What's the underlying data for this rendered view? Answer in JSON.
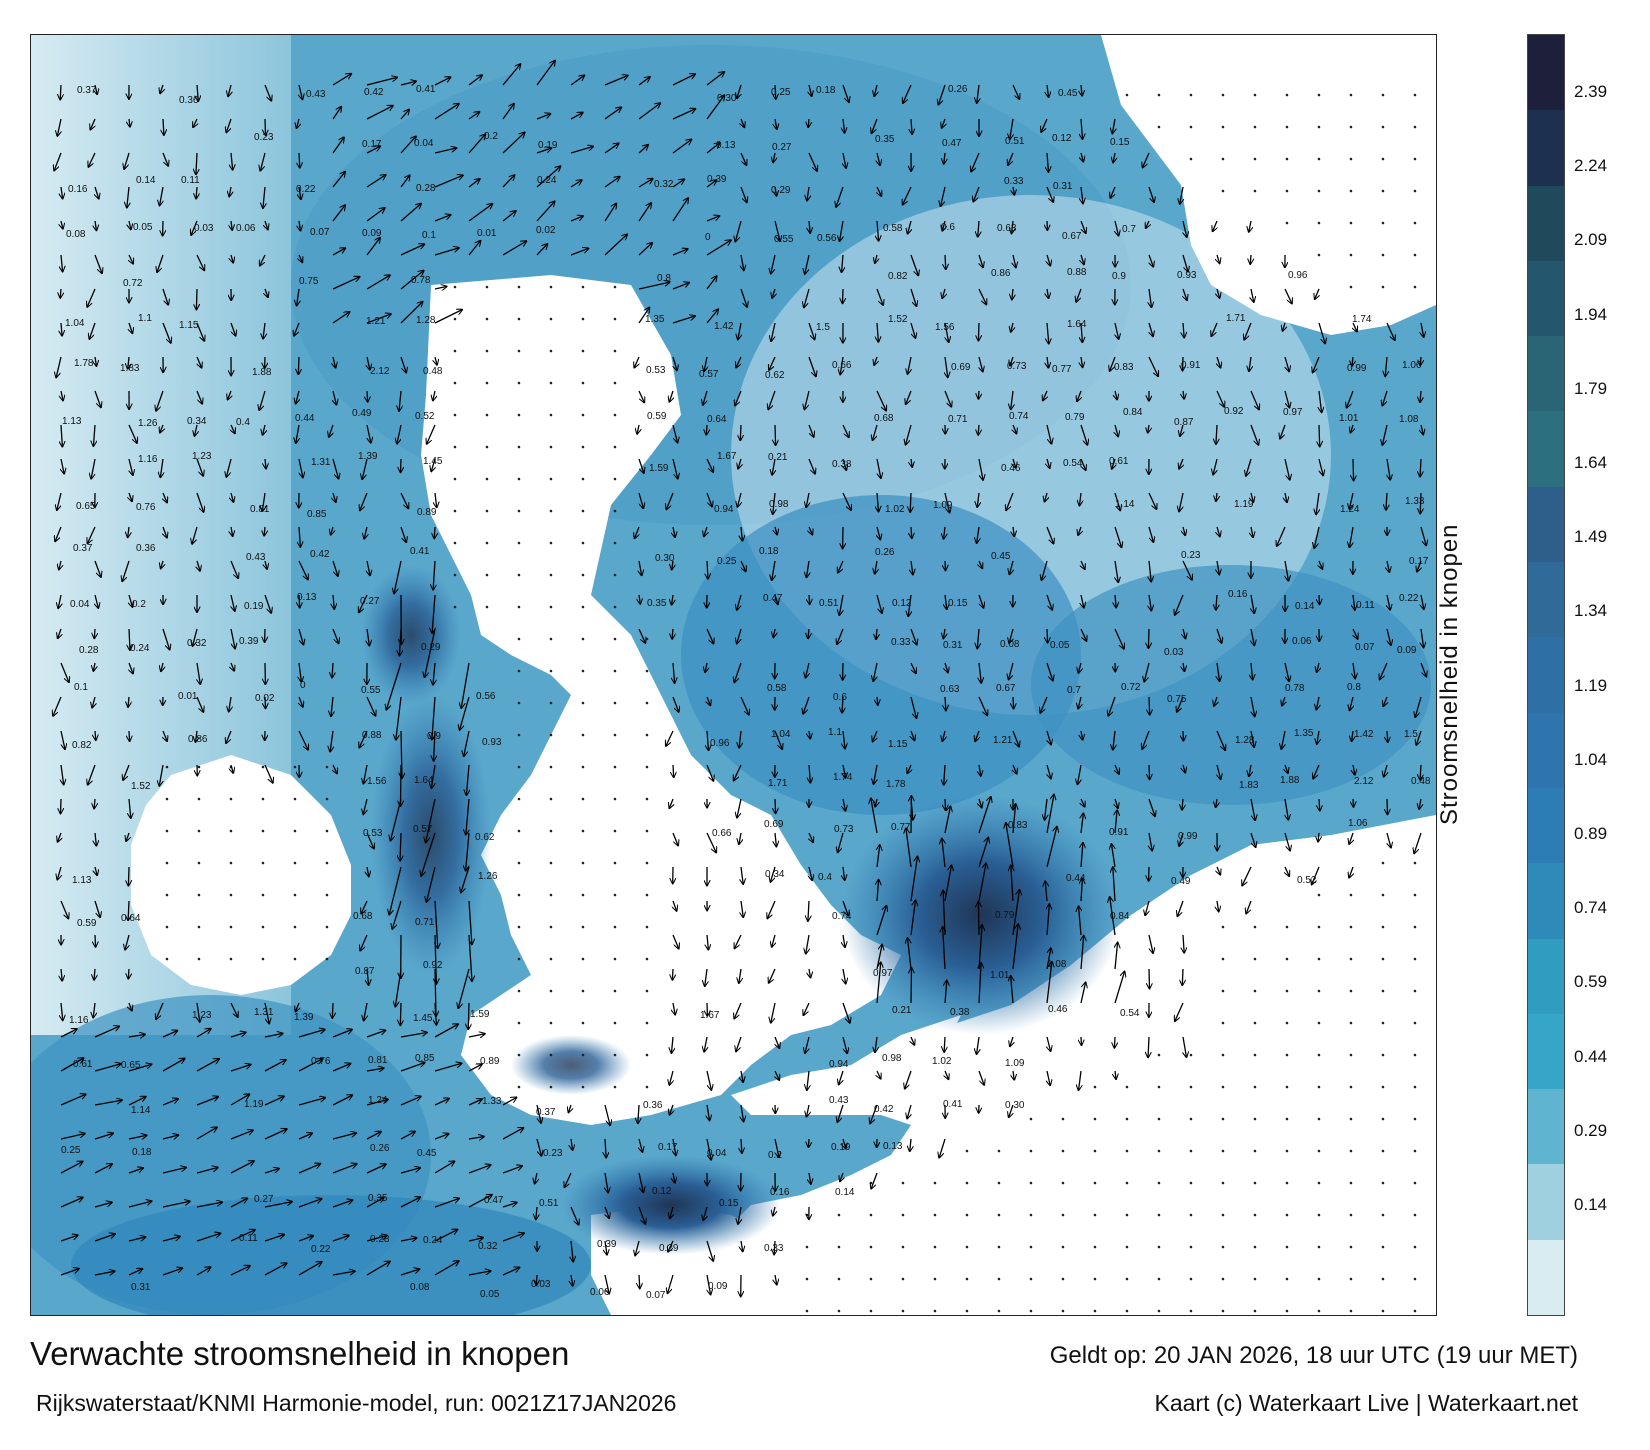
{
  "map": {
    "legend_title": "Stroomsnelheid in knopen",
    "colorbar_ticks": [
      "2.39",
      "2.24",
      "2.09",
      "1.94",
      "1.79",
      "1.64",
      "1.49",
      "1.34",
      "1.19",
      "1.04",
      "0.89",
      "0.74",
      "0.59",
      "0.44",
      "0.29",
      "0.14"
    ],
    "colorbar_colors": [
      "#1e1f3a",
      "#1d3050",
      "#1e4a5c",
      "#24566e",
      "#2a6575",
      "#2c6f7e",
      "#2d5f8a",
      "#2f6a98",
      "#2e6fa6",
      "#2e74ae",
      "#2c7cb6",
      "#2e8ab8",
      "#2f9cc0",
      "#36a6c8",
      "#5fb4d0",
      "#9ed0e0",
      "#d8ecf2"
    ],
    "land_color": "#ffffff",
    "vector_labels": [
      {
        "v": "0.37"
      },
      {
        "v": "0.36"
      },
      {
        "v": "0.43"
      },
      {
        "v": "0.42"
      },
      {
        "v": "0.41"
      },
      {
        "v": "0.30"
      },
      {
        "v": "0.25"
      },
      {
        "v": "0.18"
      },
      {
        "v": "0.26"
      },
      {
        "v": "0.45"
      },
      {
        "v": "0.23"
      },
      {
        "v": "0.17"
      },
      {
        "v": "0.04"
      },
      {
        "v": "0.2"
      },
      {
        "v": "0.19"
      },
      {
        "v": "0.13"
      },
      {
        "v": "0.27"
      },
      {
        "v": "0.35"
      },
      {
        "v": "0.47"
      },
      {
        "v": "0.51"
      },
      {
        "v": "0.12"
      },
      {
        "v": "0.15"
      },
      {
        "v": "0.16"
      },
      {
        "v": "0.14"
      },
      {
        "v": "0.11"
      },
      {
        "v": "0.22"
      },
      {
        "v": "0.28"
      },
      {
        "v": "0.24"
      },
      {
        "v": "0.32"
      },
      {
        "v": "0.39"
      },
      {
        "v": "0.29"
      },
      {
        "v": "0.33"
      },
      {
        "v": "0.31"
      },
      {
        "v": "0.08"
      },
      {
        "v": "0.05"
      },
      {
        "v": "0.03"
      },
      {
        "v": "0.06"
      },
      {
        "v": "0.07"
      },
      {
        "v": "0.09"
      },
      {
        "v": "0.1"
      },
      {
        "v": "0.01"
      },
      {
        "v": "0.02"
      },
      {
        "v": "0"
      },
      {
        "v": "0.55"
      },
      {
        "v": "0.56"
      },
      {
        "v": "0.58"
      },
      {
        "v": "0.6"
      },
      {
        "v": "0.63"
      },
      {
        "v": "0.67"
      },
      {
        "v": "0.7"
      },
      {
        "v": "0.72"
      },
      {
        "v": "0.75"
      },
      {
        "v": "0.78"
      },
      {
        "v": "0.8"
      },
      {
        "v": "0.82"
      },
      {
        "v": "0.86"
      },
      {
        "v": "0.88"
      },
      {
        "v": "0.9"
      },
      {
        "v": "0.93"
      },
      {
        "v": "0.96"
      },
      {
        "v": "1.04"
      },
      {
        "v": "1.1"
      },
      {
        "v": "1.15"
      },
      {
        "v": "1.21"
      },
      {
        "v": "1.28"
      },
      {
        "v": "1.35"
      },
      {
        "v": "1.42"
      },
      {
        "v": "1.5"
      },
      {
        "v": "1.52"
      },
      {
        "v": "1.56"
      },
      {
        "v": "1.64"
      },
      {
        "v": "1.71"
      },
      {
        "v": "1.74"
      },
      {
        "v": "1.78"
      },
      {
        "v": "1.83"
      },
      {
        "v": "1.88"
      },
      {
        "v": "2.12"
      },
      {
        "v": "0.48"
      },
      {
        "v": "0.53"
      },
      {
        "v": "0.57"
      },
      {
        "v": "0.62"
      },
      {
        "v": "0.66"
      },
      {
        "v": "0.69"
      },
      {
        "v": "0.73"
      },
      {
        "v": "0.77"
      },
      {
        "v": "0.83"
      },
      {
        "v": "0.91"
      },
      {
        "v": "0.99"
      },
      {
        "v": "1.06"
      },
      {
        "v": "1.13"
      },
      {
        "v": "1.26"
      },
      {
        "v": "0.34"
      },
      {
        "v": "0.4"
      },
      {
        "v": "0.44"
      },
      {
        "v": "0.49"
      },
      {
        "v": "0.52"
      },
      {
        "v": "0.59"
      },
      {
        "v": "0.64"
      },
      {
        "v": "0.68"
      },
      {
        "v": "0.71"
      },
      {
        "v": "0.74"
      },
      {
        "v": "0.79"
      },
      {
        "v": "0.84"
      },
      {
        "v": "0.87"
      },
      {
        "v": "0.92"
      },
      {
        "v": "0.97"
      },
      {
        "v": "1.01"
      },
      {
        "v": "1.08"
      },
      {
        "v": "1.16"
      },
      {
        "v": "1.23"
      },
      {
        "v": "1.31"
      },
      {
        "v": "1.39"
      },
      {
        "v": "1.45"
      },
      {
        "v": "1.59"
      },
      {
        "v": "1.67"
      },
      {
        "v": "0.21"
      },
      {
        "v": "0.38"
      },
      {
        "v": "0.46"
      },
      {
        "v": "0.54"
      },
      {
        "v": "0.61"
      },
      {
        "v": "0.65"
      },
      {
        "v": "0.76"
      },
      {
        "v": "0.81"
      },
      {
        "v": "0.85"
      },
      {
        "v": "0.89"
      },
      {
        "v": "0.94"
      },
      {
        "v": "0.98"
      },
      {
        "v": "1.02"
      },
      {
        "v": "1.09"
      },
      {
        "v": "1.14"
      },
      {
        "v": "1.19"
      },
      {
        "v": "1.24"
      },
      {
        "v": "1.33"
      }
    ]
  },
  "footer": {
    "title": "Verwachte stroomsnelheid in knopen",
    "valid": "Geldt op: 20 JAN 2026, 18 uur UTC (19 uur MET)",
    "run": "Rijkswaterstaat/KNMI Harmonie-model, run: 0021Z17JAN2026",
    "credit": "Kaart (c) Waterkaart Live | Waterkaart.net"
  }
}
